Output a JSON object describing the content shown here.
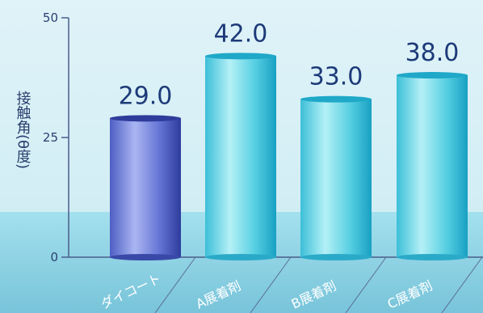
{
  "chart_data": {
    "type": "bar",
    "categories": [
      "ダイコート",
      "A展着剤",
      "B展着剤",
      "C展着剤"
    ],
    "values": [
      29.0,
      42.0,
      33.0,
      38.0
    ],
    "value_labels": [
      "29.0",
      "42.0",
      "33.0",
      "38.0"
    ],
    "ylabel": "接触角(θ度)",
    "yticks": [
      "0",
      "25",
      "50"
    ],
    "ylim": [
      0,
      50
    ],
    "grid": false,
    "colors": {
      "highlight_top": "#2e3c9c",
      "highlight_side": "#7f8fe0",
      "cyan_top": "#1fa8c8",
      "cyan_side": "#63d4e6",
      "axis": "#4a5c8a",
      "label_text": "#1d3a78"
    }
  }
}
